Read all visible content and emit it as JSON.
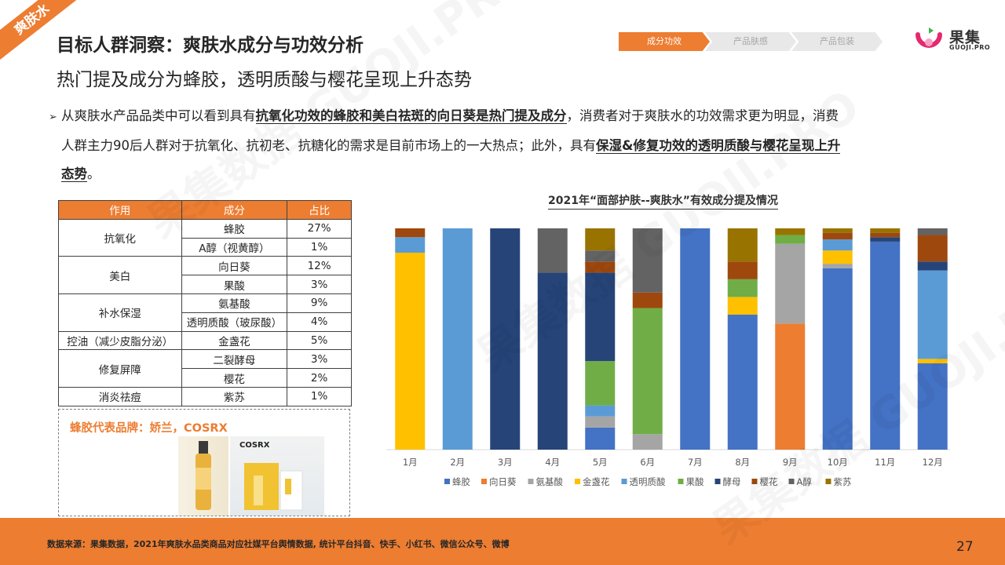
{
  "corner_tag": "爽肤水",
  "header": {
    "title": "目标人群洞察：爽肤水成分与功效分析",
    "subtitle": "热门提及成分为蜂胶，透明质酸与樱花呈现上升态势"
  },
  "steps": [
    {
      "label": "成分功效",
      "active": true
    },
    {
      "label": "产品肤感",
      "active": false
    },
    {
      "label": "产品包装",
      "active": false
    }
  ],
  "logo": {
    "name": "果集",
    "sub": "GUOJI.PRO"
  },
  "description": {
    "p1": "从爽肤水产品品类中可以看到具有",
    "b1": "抗氧化功效的蜂胶和美白祛斑的向日葵是热门提及成分",
    "p2": "，消费者对于爽肤水的功效需求更为明显，消费",
    "p3": "人群主力90后人群对于抗氧化、抗初老、抗糖化的需求是目前市场上的一大热点；此外，具有",
    "b2": "保湿&修复功效的透明质酸与樱花呈现上升",
    "b3": "态势",
    "p4": "。"
  },
  "table": {
    "headers": [
      "作用",
      "成分",
      "占比"
    ],
    "groups": [
      {
        "effect": "抗氧化",
        "rows": [
          [
            "蜂胶",
            "27%"
          ],
          [
            "A醇（视黄醇）",
            "1%"
          ]
        ]
      },
      {
        "effect": "美白",
        "rows": [
          [
            "向日葵",
            "12%"
          ],
          [
            "果酸",
            "3%"
          ]
        ]
      },
      {
        "effect": "补水保湿",
        "rows": [
          [
            "氨基酸",
            "9%"
          ],
          [
            "透明质酸（玻尿酸）",
            "4%"
          ]
        ]
      },
      {
        "effect": "控油（减少皮脂分泌）",
        "rows": [
          [
            "金盏花",
            "5%"
          ]
        ]
      },
      {
        "effect": "修复屏障",
        "rows": [
          [
            "二裂酵母",
            "3%"
          ],
          [
            "樱花",
            "2%"
          ]
        ]
      },
      {
        "effect": "消炎祛痘",
        "rows": [
          [
            "紫苏",
            "1%"
          ]
        ]
      }
    ]
  },
  "brand": {
    "title": "蜂胶代表品牌：娇兰，COSRX",
    "product_label": "COSRX"
  },
  "chart_data": {
    "type": "bar",
    "stacked": true,
    "percent": true,
    "title": "2021年“面部护肤--爽肤水”有效成分提及情况",
    "categories": [
      "1月",
      "2月",
      "3月",
      "4月",
      "5月",
      "6月",
      "7月",
      "8月",
      "9月",
      "10月",
      "11月",
      "12月"
    ],
    "ylim": [
      0,
      100
    ],
    "legend_position": "bottom",
    "series": [
      {
        "name": "蜂胶",
        "color": "#4472C4",
        "values": [
          0,
          0,
          0,
          0,
          10,
          0,
          100,
          61,
          0,
          82,
          94,
          39
        ]
      },
      {
        "name": "向日葵",
        "color": "#ED7D31",
        "values": [
          0,
          0,
          0,
          0,
          0,
          0,
          0,
          0,
          57,
          0,
          0,
          0
        ]
      },
      {
        "name": "氨基酸",
        "color": "#A5A5A5",
        "values": [
          0,
          0,
          0,
          0,
          5,
          7,
          0,
          0,
          36,
          2,
          0,
          0
        ]
      },
      {
        "name": "金盏花",
        "color": "#FFC000",
        "values": [
          89,
          0,
          0,
          0,
          0,
          0,
          0,
          8,
          0,
          6,
          0,
          2
        ]
      },
      {
        "name": "透明质酸",
        "color": "#5B9BD5",
        "values": [
          7,
          100,
          0,
          0,
          5,
          0,
          0,
          0,
          0,
          5,
          0,
          40
        ]
      },
      {
        "name": "果酸",
        "color": "#70AD47",
        "values": [
          0,
          0,
          0,
          0,
          20,
          57,
          0,
          8,
          4,
          0,
          0,
          0
        ]
      },
      {
        "name": "酵母",
        "color": "#264478",
        "values": [
          0,
          0,
          100,
          80,
          40,
          0,
          0,
          0,
          0,
          0,
          2,
          4
        ]
      },
      {
        "name": "樱花",
        "color": "#9E480E",
        "values": [
          4,
          0,
          0,
          0,
          5,
          7,
          0,
          8,
          0,
          3,
          2,
          12
        ]
      },
      {
        "name": "A醇",
        "color": "#636363",
        "values": [
          0,
          0,
          0,
          20,
          5,
          29,
          0,
          0,
          0,
          0,
          0,
          3
        ]
      },
      {
        "name": "紫苏",
        "color": "#997300",
        "values": [
          0,
          0,
          0,
          0,
          10,
          0,
          0,
          15,
          3,
          2,
          2,
          0
        ]
      }
    ]
  },
  "footer": {
    "source": "数据来源：果集数据，2021年爽肤水品类商品对应社媒平台舆情数据, 统计平台抖音、快手、小红书、微信公众号、微博",
    "page_number": "27"
  }
}
